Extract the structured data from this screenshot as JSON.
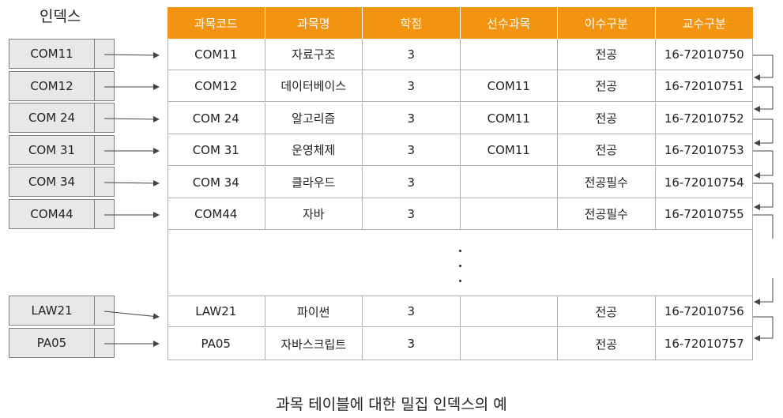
{
  "index_title": "인덱스",
  "caption": "과목 테이블에 대한 밀집 인덱스의 예",
  "colors": {
    "header_bg": "#f39410",
    "index_bg": "#e8e8e8",
    "border": "#808080"
  },
  "columns": [
    "과목코드",
    "과목명",
    "학점",
    "선수과목",
    "이수구분",
    "교수구분"
  ],
  "index_entries": [
    "COM11",
    "COM12",
    "COM 24",
    "COM 31",
    "COM 34",
    "COM44",
    "LAW21",
    "PA05"
  ],
  "rows": [
    [
      "COM11",
      "자료구조",
      "3",
      "",
      "전공",
      "16-72010750"
    ],
    [
      "COM12",
      "데이터베이스",
      "3",
      "COM11",
      "전공",
      "16-72010751"
    ],
    [
      "COM 24",
      "알고리즘",
      "3",
      "COM11",
      "전공",
      "16-72010752"
    ],
    [
      "COM 31",
      "운영체제",
      "3",
      "COM11",
      "전공",
      "16-72010753"
    ],
    [
      "COM 34",
      "클라우드",
      "3",
      "",
      "전공필수",
      "16-72010754"
    ],
    [
      "COM44",
      "자바",
      "3",
      "",
      "전공필수",
      "16-72010755"
    ],
    [
      "LAW21",
      "파이썬",
      "3",
      "",
      "전공",
      "16-72010756"
    ],
    [
      "PA05",
      "자바스크립트",
      "3",
      "",
      "전공",
      "16-72010757"
    ]
  ]
}
